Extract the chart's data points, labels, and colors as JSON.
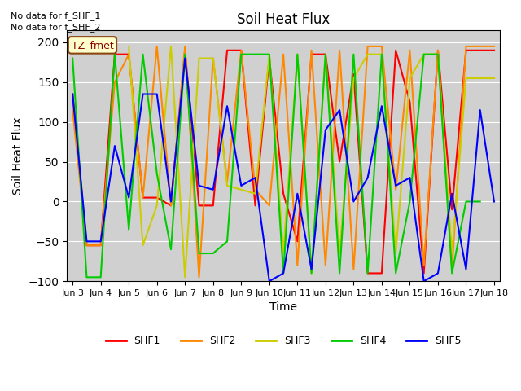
{
  "title": "Soil Heat Flux",
  "ylabel": "Soil Heat Flux",
  "xlabel": "Time",
  "ylim": [
    -100,
    215
  ],
  "yticks": [
    -100,
    -50,
    0,
    50,
    100,
    150,
    200
  ],
  "no_data_lines": [
    "No data for f_SHF_1",
    "No data for f_SHF_2"
  ],
  "tz_label": "TZ_fmet",
  "legend_labels": [
    "SHF1",
    "SHF2",
    "SHF3",
    "SHF4",
    "SHF5"
  ],
  "plot_bg_color": "#d0d0d0",
  "fig_bg_color": "#ffffff",
  "grid_color": "#ffffff",
  "colors": {
    "SHF1": "#ff0000",
    "SHF2": "#ff8800",
    "SHF3": "#cccc00",
    "SHF4": "#00cc00",
    "SHF5": "#0000ff"
  },
  "x_tick_positions": [
    0,
    1,
    2,
    3,
    4,
    5,
    6,
    7,
    8,
    9,
    10,
    11,
    12,
    13,
    14,
    15
  ],
  "x_tick_labels": [
    "Jun 3",
    "Jun 4",
    "Jun 5",
    "Jun 6",
    "Jun 7",
    "Jun 8",
    "Jun 9",
    "Jun 10",
    "Jun 11",
    "Jun 12",
    "Jun 13",
    "Jun 14",
    "Jun 15",
    "Jun 16",
    "Jun 17",
    "Jun 18"
  ],
  "SHF1_x": [
    0,
    0.5,
    1,
    1.5,
    2,
    2.5,
    3,
    3.5,
    4,
    4.5,
    5,
    5.5,
    6,
    6.5,
    7,
    7.5,
    8,
    8.5,
    9,
    9.5,
    10,
    10.5,
    11,
    11.5,
    12,
    12.5,
    13,
    13.5,
    14,
    14.5,
    15
  ],
  "SHF1_y": [
    135,
    -55,
    -55,
    185,
    185,
    5,
    5,
    -5,
    190,
    -5,
    -5,
    190,
    190,
    -5,
    180,
    10,
    -50,
    185,
    185,
    50,
    160,
    -90,
    -90,
    190,
    125,
    -90,
    190,
    -10,
    190,
    190,
    190
  ],
  "SHF2_x": [
    0,
    0.5,
    1,
    1.5,
    2,
    2.5,
    3,
    3.5,
    4,
    4.5,
    5,
    5.5,
    6,
    6.5,
    7,
    7.5,
    8,
    8.5,
    9,
    9.5,
    10,
    10.5,
    11,
    11.5,
    12,
    12.5,
    13,
    13.5,
    14,
    14.5,
    15
  ],
  "SHF2_y": [
    115,
    -55,
    -55,
    150,
    185,
    5,
    195,
    -5,
    195,
    -95,
    180,
    25,
    190,
    15,
    -5,
    185,
    -80,
    190,
    -80,
    190,
    -85,
    195,
    195,
    15,
    190,
    -80,
    190,
    -85,
    195,
    195,
    195
  ],
  "SHF3_x": [
    2,
    2.5,
    3,
    3.5,
    4,
    4.5,
    5,
    5.5,
    6,
    6.5,
    7,
    7.5,
    8,
    8.5,
    9,
    9.5,
    10,
    10.5,
    11,
    11.5,
    12,
    12.5,
    13,
    13.5,
    14,
    14.5,
    15
  ],
  "SHF3_y": [
    195,
    -55,
    -5,
    195,
    -95,
    180,
    180,
    20,
    15,
    10,
    185,
    -65,
    185,
    -90,
    185,
    -65,
    155,
    185,
    185,
    -65,
    155,
    185,
    185,
    -65,
    155,
    155,
    155
  ],
  "SHF4_x": [
    0,
    0.5,
    1,
    1.5,
    2,
    2.5,
    3,
    3.5,
    4,
    4.5,
    5,
    5.5,
    6,
    6.5,
    7,
    7.5,
    8,
    8.5,
    9,
    9.5,
    10,
    10.5,
    11,
    11.5,
    12,
    12.5,
    13,
    13.5,
    14,
    14.5
  ],
  "SHF4_y": [
    180,
    -95,
    -95,
    185,
    -35,
    185,
    35,
    -60,
    185,
    -65,
    -65,
    -50,
    185,
    185,
    185,
    -90,
    185,
    -90,
    185,
    -90,
    185,
    -90,
    185,
    -90,
    0,
    185,
    185,
    -90,
    0,
    0
  ],
  "SHF5_x": [
    0,
    0.5,
    1,
    1.5,
    2,
    2.5,
    3,
    3.5,
    4,
    4.5,
    5,
    5.5,
    6,
    6.5,
    7,
    7.5,
    8,
    8.5,
    9,
    9.5,
    10,
    10.5,
    11,
    11.5,
    12,
    12.5,
    13,
    13.5,
    14,
    14.5,
    15
  ],
  "SHF5_y": [
    135,
    -50,
    -50,
    70,
    5,
    135,
    135,
    0,
    180,
    20,
    15,
    120,
    20,
    30,
    -100,
    -90,
    10,
    -85,
    90,
    115,
    0,
    30,
    120,
    20,
    30,
    -100,
    -90,
    10,
    -85,
    115,
    0
  ]
}
